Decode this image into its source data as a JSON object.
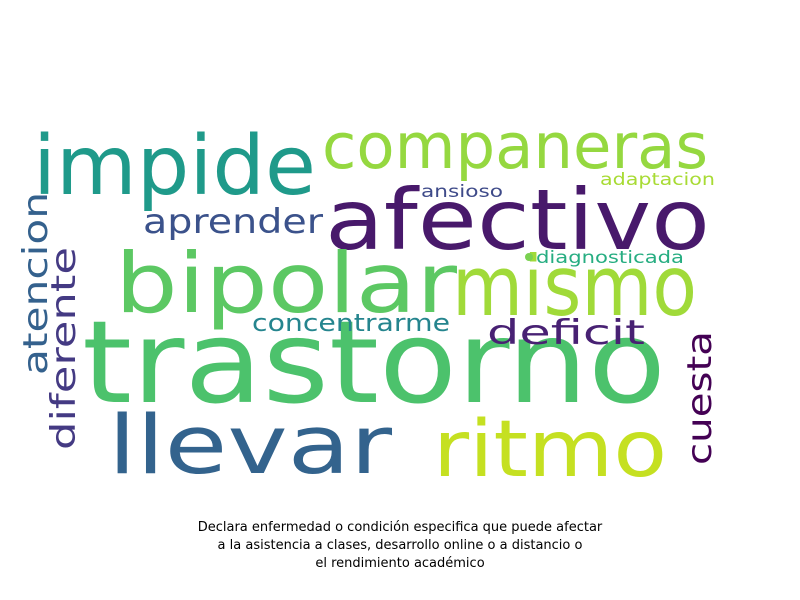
{
  "chart_data": {
    "type": "wordcloud",
    "title": "",
    "caption_lines": [
      "Declara enfermedad o condición especifica que puede afectar",
      "a la asistencia a clases, desarrollo online o a distancio o",
      "el rendimiento académico"
    ],
    "words": [
      {
        "text": "trastorno",
        "weight": 1.0,
        "color": "#4cc26c",
        "orientation": "horizontal"
      },
      {
        "text": "afectivo",
        "weight": 0.82,
        "color": "#48196b",
        "orientation": "horizontal"
      },
      {
        "text": "bipolar",
        "weight": 0.8,
        "color": "#5cc863",
        "orientation": "horizontal"
      },
      {
        "text": "mismo",
        "weight": 0.8,
        "color": "#a0da39",
        "orientation": "horizontal"
      },
      {
        "text": "impide",
        "weight": 0.8,
        "color": "#1f9a8a",
        "orientation": "horizontal"
      },
      {
        "text": "llevar",
        "weight": 0.78,
        "color": "#33638d",
        "orientation": "horizontal"
      },
      {
        "text": "ritmo",
        "weight": 0.76,
        "color": "#c5e021",
        "orientation": "horizontal"
      },
      {
        "text": "companeras",
        "weight": 0.62,
        "color": "#95d840",
        "orientation": "horizontal"
      },
      {
        "text": "aprender",
        "weight": 0.34,
        "color": "#3b528b",
        "orientation": "horizontal"
      },
      {
        "text": "deficit",
        "weight": 0.34,
        "color": "#482173",
        "orientation": "horizontal"
      },
      {
        "text": "atencion",
        "weight": 0.34,
        "color": "#34618d",
        "orientation": "vertical"
      },
      {
        "text": "diferente",
        "weight": 0.34,
        "color": "#443a83",
        "orientation": "vertical"
      },
      {
        "text": "cuesta",
        "weight": 0.34,
        "color": "#440154",
        "orientation": "vertical"
      },
      {
        "text": "concentrarme",
        "weight": 0.26,
        "color": "#25858e",
        "orientation": "horizontal"
      },
      {
        "text": "ansioso",
        "weight": 0.16,
        "color": "#3e4a89",
        "orientation": "horizontal"
      },
      {
        "text": "adaptacion",
        "weight": 0.16,
        "color": "#a8db34",
        "orientation": "horizontal"
      },
      {
        "text": "diagnosticada",
        "weight": 0.16,
        "color": "#26ad81",
        "orientation": "horizontal"
      }
    ]
  }
}
